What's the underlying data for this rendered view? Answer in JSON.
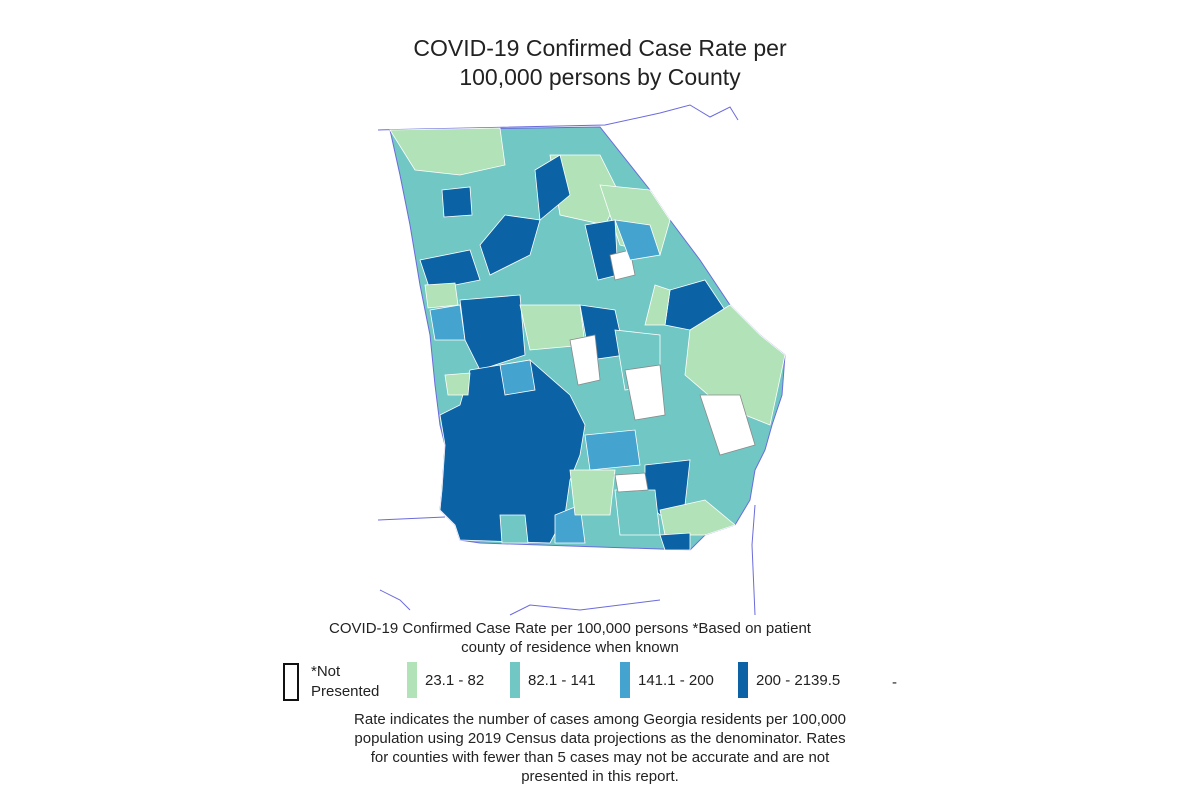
{
  "title": {
    "line1": "COVID-19 Confirmed Case Rate per",
    "line2": "100,000 persons by County"
  },
  "colors": {
    "not_presented": "#ffffff",
    "bin1": "#b2e2b8",
    "bin2": "#71c7c4",
    "bin3": "#45a3cf",
    "bin4": "#0b63a5",
    "border": "#6b6bdc",
    "county_line": "#8a8a8a"
  },
  "legend": {
    "title_line1": "COVID-19 Confirmed Case Rate per 100,000 persons *Based on patient",
    "title_line2": "county of residence when known",
    "not_presented_line1": "*Not",
    "not_presented_line2": "Presented",
    "bins": [
      "23.1 - 82",
      "82.1 - 141",
      "141.1 - 200",
      "200 - 2139.5"
    ],
    "trailing": "-"
  },
  "note": {
    "line1": "Rate indicates the number of cases among Georgia residents per 100,000",
    "line2": "population using 2019 Census data projections as the denominator. Rates",
    "line3": "for counties with fewer than 5 cases may not be accurate and are not",
    "line4": "presented in this report."
  }
}
